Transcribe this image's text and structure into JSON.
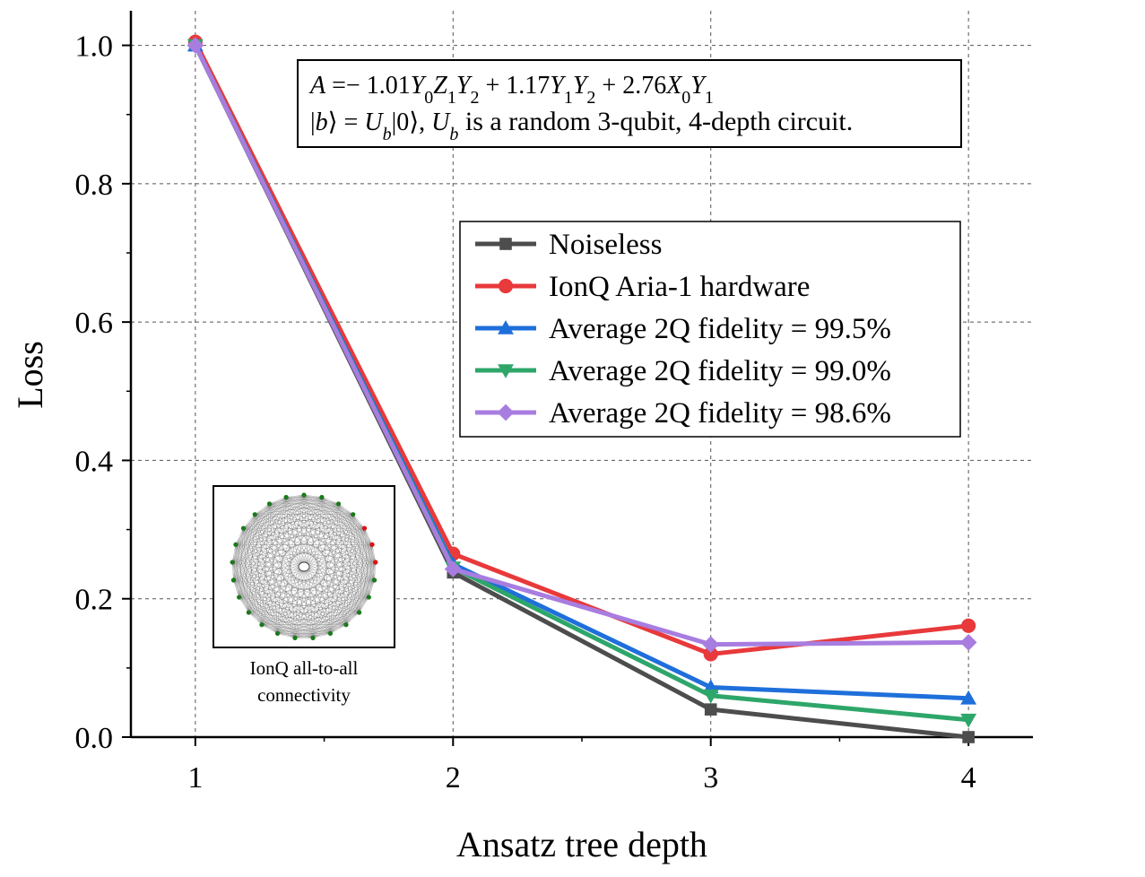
{
  "chart_data": {
    "type": "line",
    "xlabel": "Ansatz tree depth",
    "ylabel": "Loss",
    "x": [
      1,
      2,
      3,
      4
    ],
    "xticks": [
      "1",
      "2",
      "3",
      "4"
    ],
    "yticks": [
      "0.0",
      "0.2",
      "0.4",
      "0.6",
      "0.8",
      "1.0"
    ],
    "xlim": [
      0.75,
      4.25
    ],
    "ylim": [
      0.0,
      1.05
    ],
    "grid": true,
    "legend_position": "right",
    "series": [
      {
        "name": "Noiseless",
        "values": [
          1.0,
          0.238,
          0.04,
          0.0
        ],
        "color": "#4d4d4d",
        "marker": "square"
      },
      {
        "name": "IonQ Aria-1 hardware",
        "values": [
          1.005,
          0.265,
          0.12,
          0.161
        ],
        "color": "#e8393b",
        "marker": "circle"
      },
      {
        "name": "Average 2Q fidelity = 99.5%",
        "values": [
          1.0,
          0.25,
          0.072,
          0.056
        ],
        "color": "#1f6fdb",
        "marker": "triangle-up"
      },
      {
        "name": "Average 2Q fidelity = 99.0%",
        "values": [
          1.0,
          0.245,
          0.06,
          0.025
        ],
        "color": "#2ea66a",
        "marker": "triangle-down"
      },
      {
        "name": "Average 2Q fidelity = 98.6%",
        "values": [
          1.0,
          0.243,
          0.134,
          0.137
        ],
        "color": "#a87de0",
        "marker": "diamond"
      }
    ],
    "annotation": {
      "line1": "A =− 1.01Y₀Z₁Y₂ + 1.17Y₁Y₂ + 2.76X₀Y₁",
      "line2": "|b⟩ = U_b|0⟩,  U_b is a random 3-qubit, 4-depth circuit."
    },
    "inset": {
      "caption_line1": "IonQ all-to-all",
      "caption_line2": "connectivity",
      "num_nodes": 25,
      "colors": {
        "node": "#1a7a1a",
        "highlight": "#dd1111",
        "edge": "#555555"
      }
    }
  }
}
